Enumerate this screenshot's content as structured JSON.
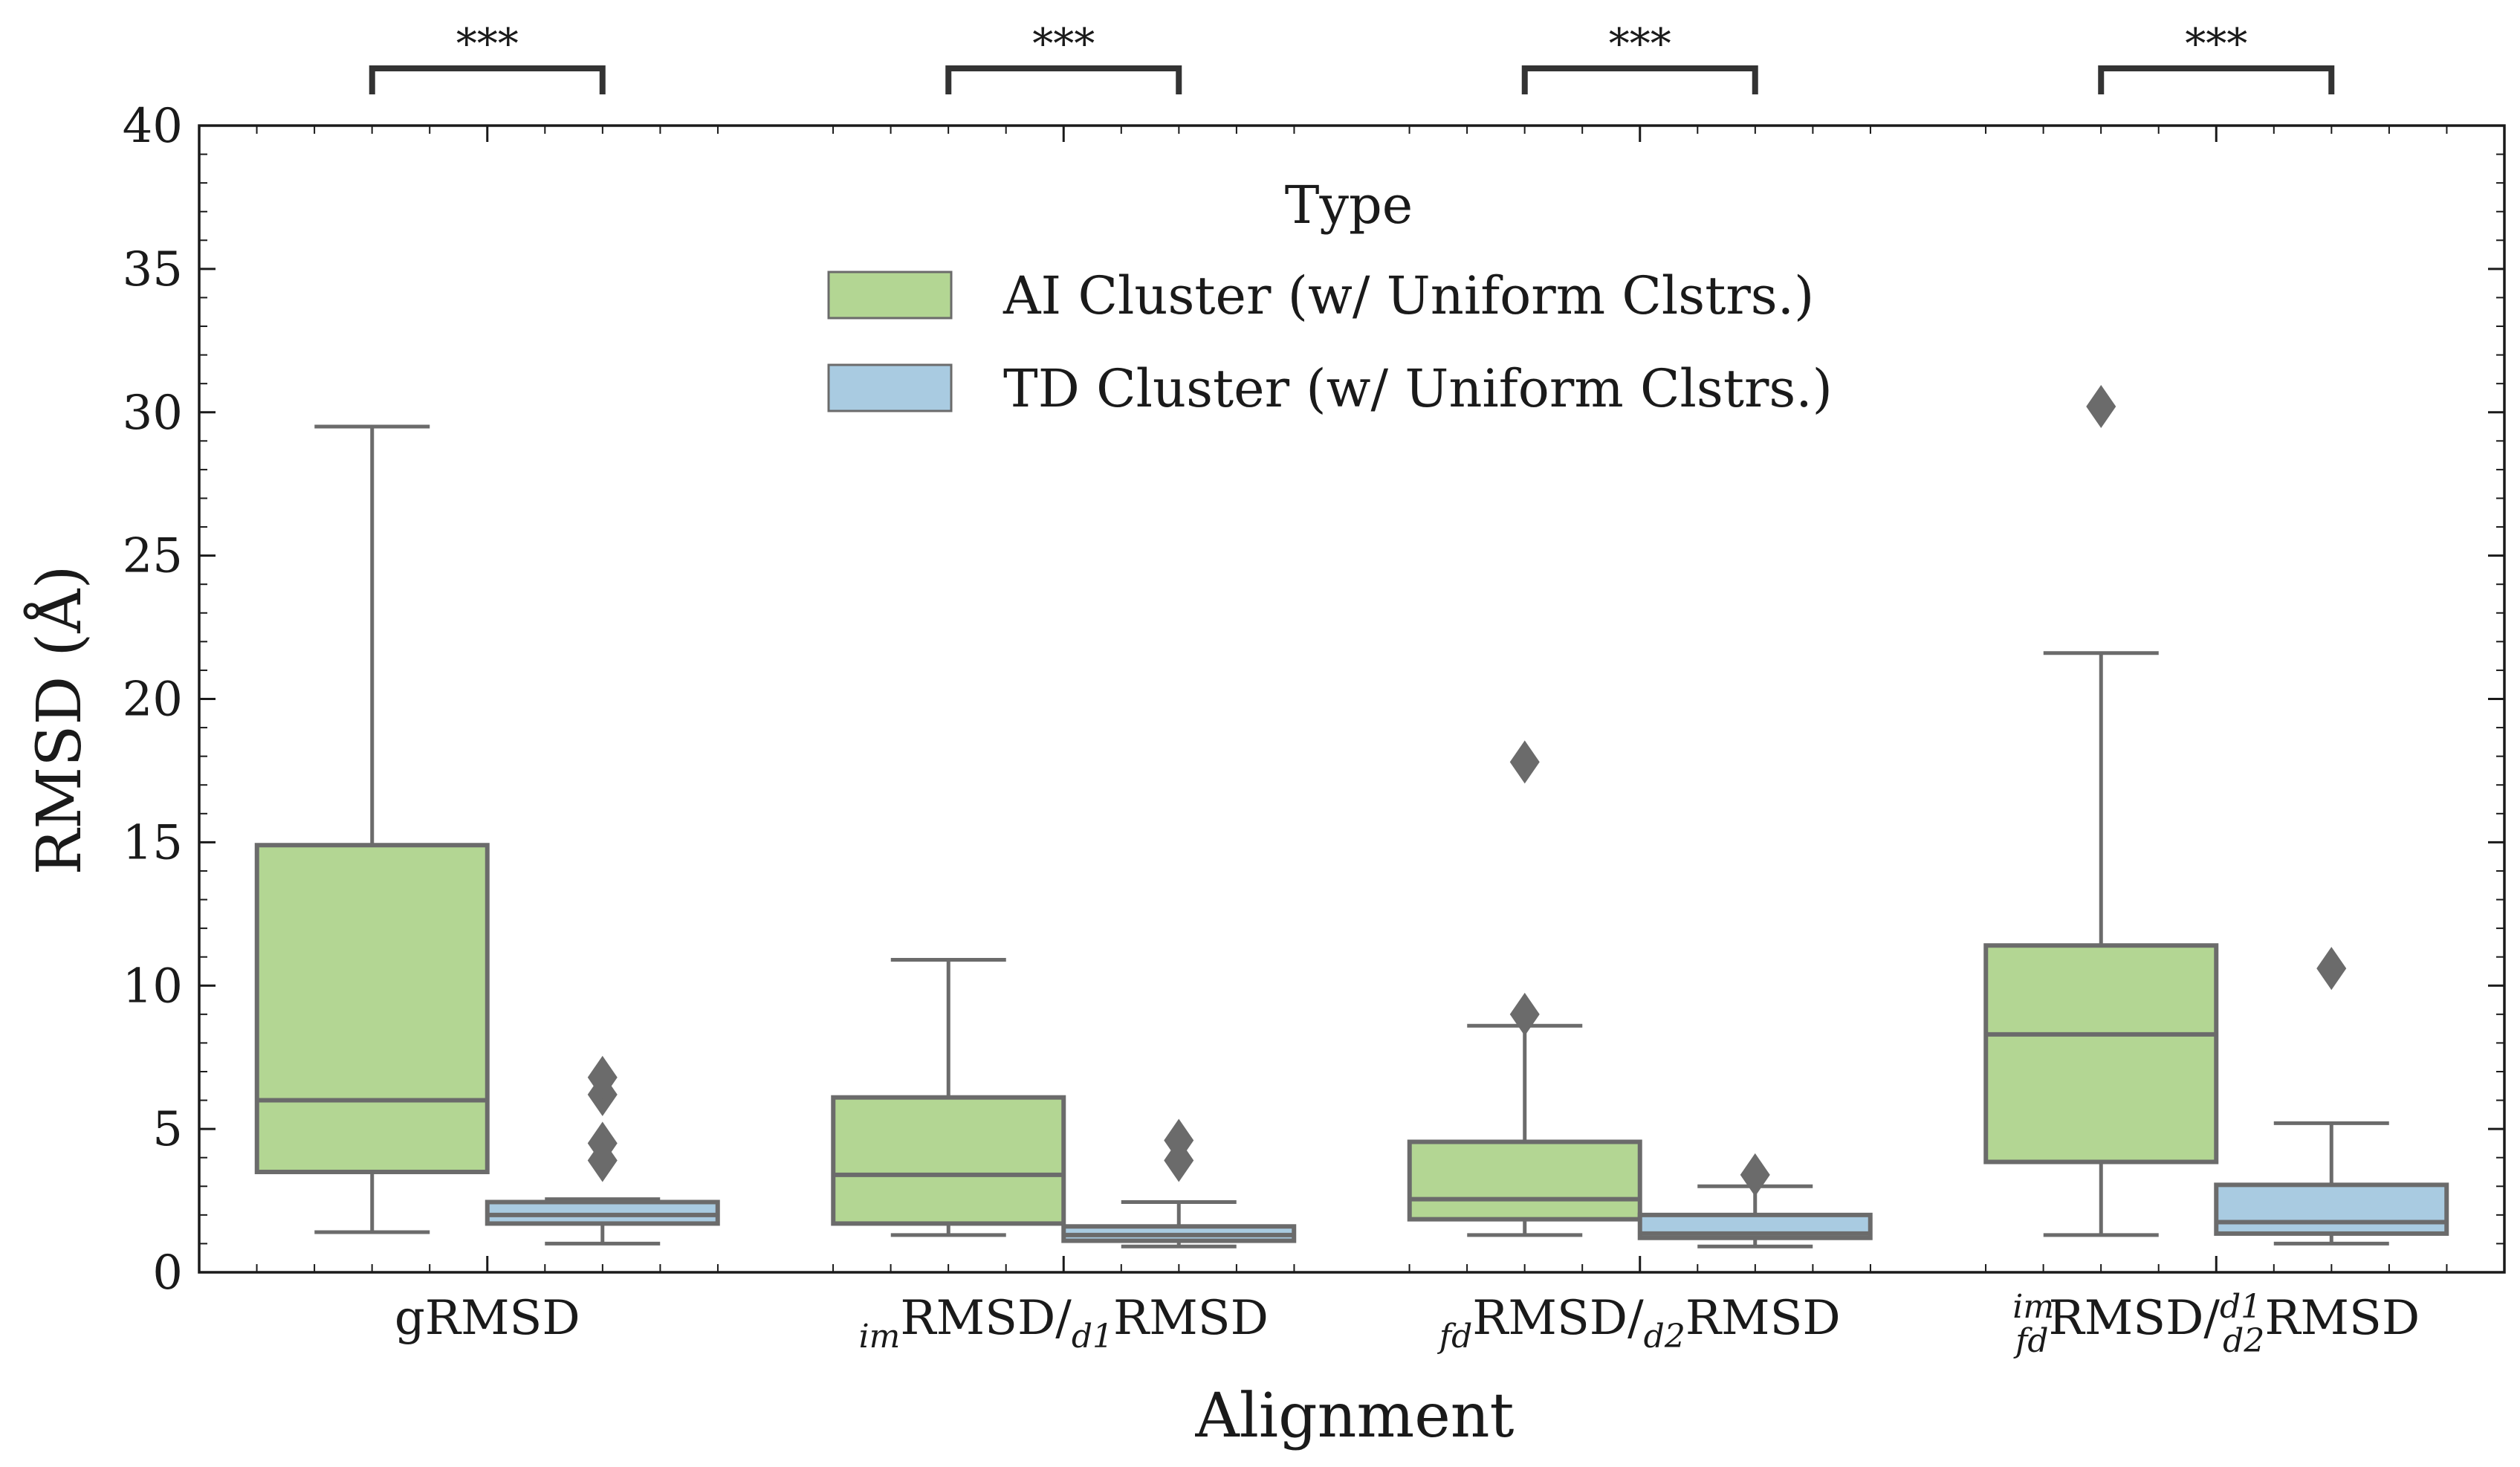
{
  "chart_data": {
    "type": "box",
    "xlabel": "Alignment",
    "ylabel": "RMSD (Å)",
    "ylim": [
      0,
      40
    ],
    "yticks": [
      0,
      5,
      10,
      15,
      20,
      25,
      30,
      35,
      40
    ],
    "ytick_labels": [
      "0",
      "5",
      "10",
      "15",
      "20",
      "25",
      "30",
      "35",
      "40"
    ],
    "grid": false,
    "legend": {
      "title": "Type",
      "placement": "top-center",
      "entries": [
        {
          "label": "AI Cluster (w/ Uniform Clstrs.)",
          "color": "#b3d693"
        },
        {
          "label": "TD Cluster (w/ Uniform Clstrs.)",
          "color": "#a9cbe1"
        }
      ]
    },
    "categories": [
      {
        "main": "gRMSD",
        "parts": [
          {
            "t": "gRMSD"
          }
        ]
      },
      {
        "main": "imRMSD/d1RMSD",
        "parts": [
          {
            "sub": "im"
          },
          {
            "t": "RMSD/"
          },
          {
            "sub": "d1"
          },
          {
            "t": "RMSD"
          }
        ]
      },
      {
        "main": "fdRMSD/d2RMSD",
        "parts": [
          {
            "sub": "fd"
          },
          {
            "t": "RMSD/"
          },
          {
            "sub": "d2"
          },
          {
            "t": "RMSD"
          }
        ]
      },
      {
        "main": "im/fd RMSD / d1/d2 RMSD",
        "parts": [
          {
            "stack": [
              "im",
              "fd"
            ]
          },
          {
            "t": "RMSD/"
          },
          {
            "stack": [
              "d1",
              "d2"
            ]
          },
          {
            "t": "RMSD"
          }
        ]
      }
    ],
    "significance": [
      "***",
      "***",
      "***",
      "***"
    ],
    "series": [
      {
        "color": "#b3d693",
        "boxes": [
          {
            "whislo": 1.4,
            "q1": 3.5,
            "med": 6.0,
            "q3": 14.9,
            "whishi": 29.5,
            "fliers": []
          },
          {
            "whislo": 1.3,
            "q1": 1.7,
            "med": 3.4,
            "q3": 6.1,
            "whishi": 10.9,
            "fliers": []
          },
          {
            "whislo": 1.3,
            "q1": 1.85,
            "med": 2.55,
            "q3": 4.55,
            "whishi": 8.6,
            "fliers": [
              9.0,
              17.8
            ]
          },
          {
            "whislo": 1.3,
            "q1": 3.85,
            "med": 8.3,
            "q3": 11.4,
            "whishi": 21.6,
            "fliers": [
              30.2
            ]
          }
        ]
      },
      {
        "color": "#a9cbe1",
        "boxes": [
          {
            "whislo": 1.0,
            "q1": 1.7,
            "med": 2.0,
            "q3": 2.45,
            "whishi": 2.55,
            "fliers": [
              3.9,
              4.5,
              6.2,
              6.8
            ]
          },
          {
            "whislo": 0.9,
            "q1": 1.1,
            "med": 1.3,
            "q3": 1.6,
            "whishi": 2.45,
            "fliers": [
              3.9,
              4.6
            ]
          },
          {
            "whislo": 0.9,
            "q1": 1.2,
            "med": 1.35,
            "q3": 2.0,
            "whishi": 3.0,
            "fliers": [
              3.4
            ]
          },
          {
            "whislo": 1.0,
            "q1": 1.35,
            "med": 1.75,
            "q3": 3.05,
            "whishi": 5.2,
            "fliers": [
              10.6
            ]
          }
        ]
      }
    ]
  }
}
